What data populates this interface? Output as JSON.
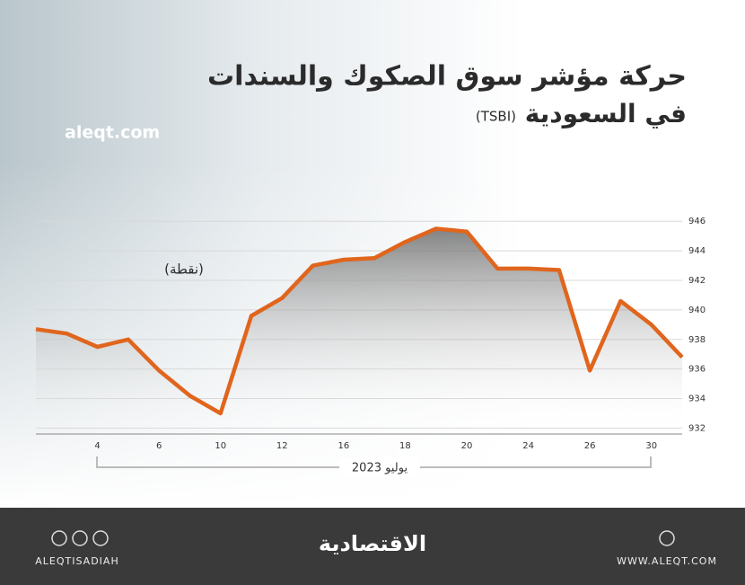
{
  "chart_data": {
    "type": "line",
    "title": "حركة مؤشر سوق الصكوك والسندات",
    "subtitle": "في السعودية",
    "subtitle_code": "(TSBI)",
    "site": "aleqt.com",
    "y_label": "(نقطة)",
    "x_label": "يوليو 2023",
    "categories": [
      null,
      null,
      "4",
      null,
      "6",
      null,
      "10",
      null,
      "12",
      null,
      "16",
      null,
      "18",
      null,
      "20",
      null,
      "24",
      null,
      "26",
      null,
      "30",
      null
    ],
    "series": [
      {
        "name": "TSBI",
        "color": "#e0651d",
        "values": [
          938.7,
          938.4,
          937.5,
          938.0,
          935.9,
          934.2,
          933.0,
          939.6,
          940.8,
          943.0,
          943.4,
          943.5,
          944.6,
          945.5,
          945.3,
          942.8,
          942.8,
          942.7,
          935.9,
          940.6,
          939.0,
          936.8
        ]
      }
    ],
    "ylim": [
      931.6,
      947.9
    ],
    "yticks": [
      932,
      934,
      936,
      938,
      940,
      942,
      944,
      946
    ],
    "grid": true
  },
  "footer": {
    "handle": "ALEQTISADIAH",
    "logo": "الاقتصادية",
    "url": "WWW.ALEQT.COM"
  }
}
